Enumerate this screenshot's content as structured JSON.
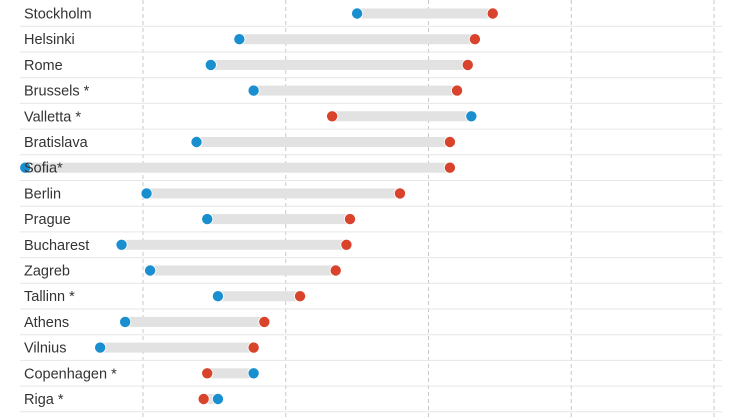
{
  "chart_data": {
    "type": "dumbbell",
    "categories": [
      "Stockholm",
      "Helsinki",
      "Rome",
      "Brussels *",
      "Valletta *",
      "Bratislava",
      "Sofia*",
      "Berlin",
      "Prague",
      "Bucharest",
      "Zagreb",
      "Tallinn *",
      "Athens",
      "Vilnius",
      "Copenhagen *",
      "Riga *"
    ],
    "series": [
      {
        "color": "#1a8fd0",
        "values": [
          3.0,
          1.35,
          0.95,
          1.55,
          4.6,
          0.75,
          -1.65,
          0.05,
          0.9,
          -0.3,
          0.1,
          1.05,
          -0.25,
          -0.6,
          1.55,
          1.05
        ]
      },
      {
        "color": "#d9432b",
        "values": [
          4.9,
          4.65,
          4.55,
          4.4,
          2.65,
          4.3,
          4.3,
          3.6,
          2.9,
          2.85,
          2.7,
          2.2,
          1.7,
          1.55,
          0.9,
          0.85
        ]
      }
    ],
    "xlim": [
      -2.0,
      8.3
    ],
    "x_gridlines": [
      0,
      2,
      4,
      6,
      8
    ],
    "grid": true,
    "connector_color": "#e2e2e2"
  }
}
